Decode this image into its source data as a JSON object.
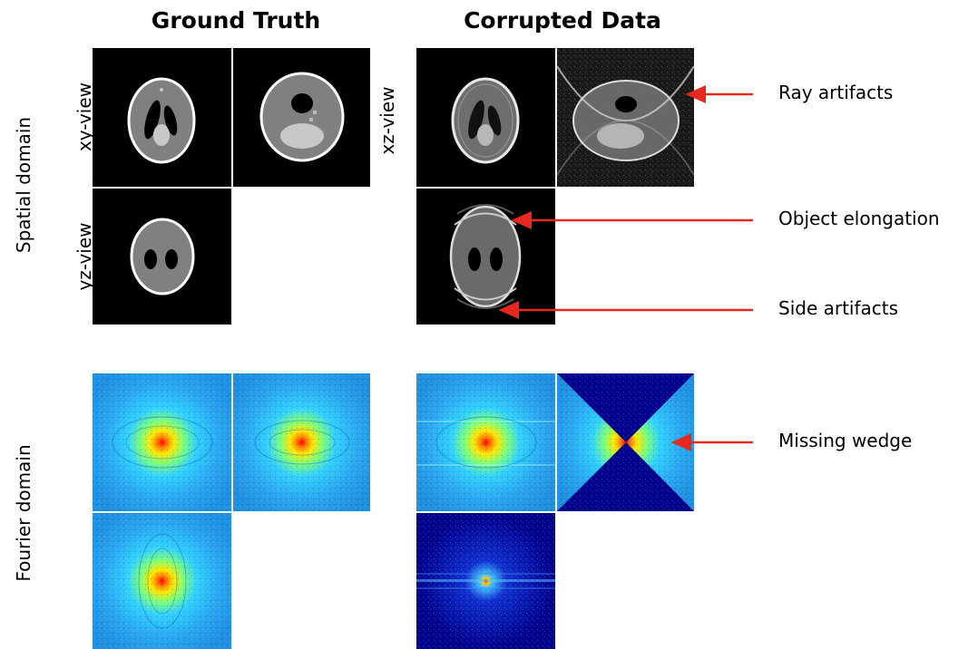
{
  "columns": {
    "left_title": "Ground Truth",
    "right_title": "Corrupted Data"
  },
  "rows": {
    "spatial_label": "Spatial domain",
    "fourier_label": "Fourier domain"
  },
  "views": {
    "left_xy": "xy-view",
    "left_yz": "yz-view",
    "right_xz": "xz-view"
  },
  "annotations": [
    {
      "text": "Ray artifacts"
    },
    {
      "text": "Object elongation"
    },
    {
      "text": "Side artifacts"
    },
    {
      "text": "Missing wedge"
    }
  ],
  "colors": {
    "arrow": "#e8281e",
    "panel_background": "#000000",
    "phantom_body": "#808080",
    "phantom_rim": "#ffffff",
    "spectrum_low": "#00008c",
    "spectrum_mid": "#40c0ff",
    "spectrum_high": "#ff0000"
  }
}
